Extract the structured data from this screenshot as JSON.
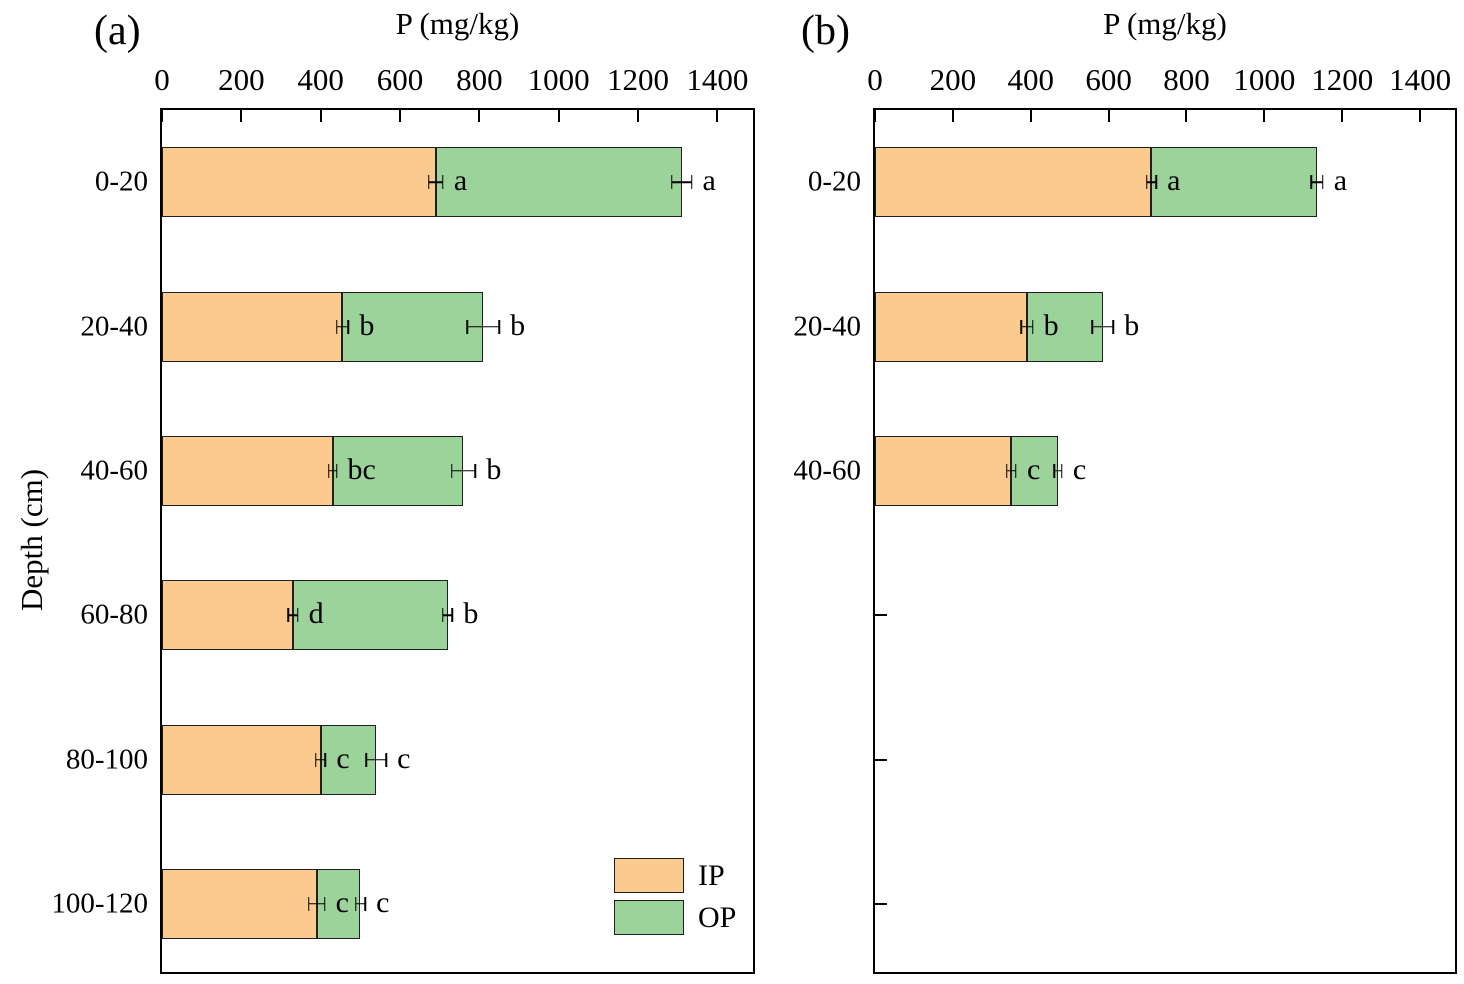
{
  "figure": {
    "panel_a_label": "(a)",
    "panel_b_label": "(b)",
    "x_axis_title": "P (mg/kg)",
    "y_axis_title": "Depth (cm)",
    "colors": {
      "ip": "#FBCA8E",
      "op": "#9CD39B",
      "axis": "#000000"
    },
    "legend": [
      {
        "label": "IP",
        "color": "#FBCA8E"
      },
      {
        "label": "OP",
        "color": "#9CD39B"
      }
    ]
  },
  "chart_data": [
    {
      "type": "bar",
      "panel": "a",
      "orientation": "horizontal_stacked",
      "title": "P (mg/kg)",
      "ylabel": "Depth (cm)",
      "xlim": [
        0,
        1500
      ],
      "xticks": [
        0,
        200,
        400,
        600,
        800,
        1000,
        1200,
        1400
      ],
      "grid": false,
      "categories": [
        "0-20",
        "20-40",
        "40-60",
        "60-80",
        "80-100",
        "100-120"
      ],
      "series": [
        {
          "name": "IP",
          "values": [
            690,
            455,
            430,
            330,
            400,
            390
          ],
          "errors": [
            18,
            15,
            10,
            12,
            12,
            20
          ],
          "sig_letters": [
            "a",
            "b",
            "bc",
            "d",
            "c",
            "c"
          ]
        },
        {
          "name": "OP",
          "values": [
            620,
            355,
            330,
            390,
            140,
            110
          ]
        }
      ],
      "totals": {
        "values": [
          1310,
          810,
          760,
          720,
          540,
          500
        ],
        "errors": [
          25,
          40,
          30,
          12,
          25,
          12
        ],
        "sig_letters": [
          "a",
          "b",
          "b",
          "b",
          "c",
          "c"
        ]
      },
      "legend_visible": true
    },
    {
      "type": "bar",
      "panel": "b",
      "orientation": "horizontal_stacked",
      "title": "P (mg/kg)",
      "ylabel": "",
      "xlim": [
        0,
        1500
      ],
      "xticks": [
        0,
        200,
        400,
        600,
        800,
        1000,
        1200,
        1400
      ],
      "grid": false,
      "categories": [
        "0-20",
        "20-40",
        "40-60",
        "",
        "",
        ""
      ],
      "series": [
        {
          "name": "IP",
          "values": [
            710,
            390,
            350
          ],
          "errors": [
            12,
            15,
            12
          ],
          "sig_letters": [
            "a",
            "b",
            "c"
          ]
        },
        {
          "name": "OP",
          "values": [
            425,
            195,
            120
          ]
        }
      ],
      "totals": {
        "values": [
          1135,
          585,
          470
        ],
        "errors": [
          15,
          27,
          10
        ],
        "sig_letters": [
          "a",
          "b",
          "c"
        ]
      },
      "legend_visible": false
    }
  ]
}
